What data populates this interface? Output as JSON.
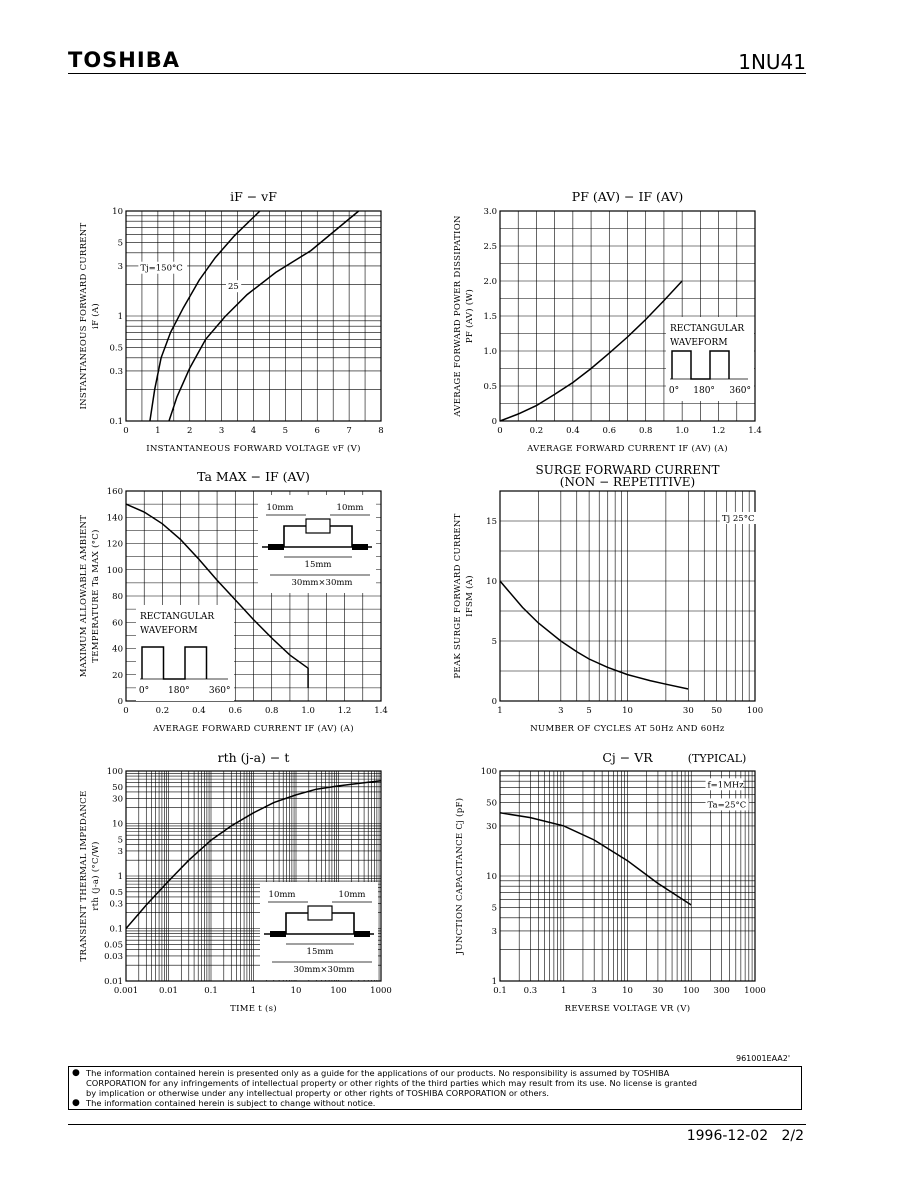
{
  "header": {
    "brand": "TOSHIBA",
    "part_number": "1NU41"
  },
  "chart_data": [
    {
      "id": "c1",
      "type": "line",
      "title": "iF − vF",
      "xlabel": "INSTANTANEOUS FORWARD VOLTAGE   vF   (V)",
      "ylabel": [
        "INSTANTANEOUS FORWARD CURRENT",
        "iF   (A)"
      ],
      "xscale": "linear",
      "yscale": "log",
      "xlim": [
        0,
        8
      ],
      "ylim": [
        0.1,
        10
      ],
      "xticks": [
        0,
        1,
        2,
        3,
        4,
        5,
        6,
        7,
        8
      ],
      "xtick_labels": [
        "0",
        "1",
        "2",
        "3",
        "4",
        "5",
        "6",
        "7",
        "8"
      ],
      "yticks": [
        0.1,
        0.3,
        0.5,
        1,
        3,
        5,
        10
      ],
      "ytick_labels": [
        "0.1",
        "0.3",
        "0.5",
        "1",
        "3",
        "5",
        "10"
      ],
      "grid": true,
      "series": [
        {
          "x": [
            0.75,
            0.9,
            1.1,
            1.4,
            1.8,
            2.3,
            2.8,
            3.4,
            4.2
          ],
          "y": [
            0.1,
            0.2,
            0.4,
            0.7,
            1.2,
            2.2,
            3.6,
            5.8,
            10
          ]
        },
        {
          "x": [
            1.35,
            1.6,
            2.0,
            2.5,
            3.1,
            3.8,
            4.7,
            5.8,
            7.3
          ],
          "y": [
            0.1,
            0.17,
            0.32,
            0.6,
            0.98,
            1.6,
            2.6,
            4.2,
            10
          ]
        }
      ],
      "annotations": [
        {
          "text": "Tj=150°C",
          "x": 0.45,
          "y": 2.7
        },
        {
          "text": "25",
          "x": 3.2,
          "y": 1.8
        }
      ]
    },
    {
      "id": "c2",
      "type": "line",
      "title": "PF (AV) − IF (AV)",
      "xlabel": "AVERAGE FORWARD CURRENT   IF (AV)   (A)",
      "ylabel": [
        "AVERAGE FORWARD POWER DISSIPATION",
        "PF (AV)   (W)"
      ],
      "xscale": "linear",
      "yscale": "linear",
      "xlim": [
        0,
        1.4
      ],
      "ylim": [
        0,
        3.0
      ],
      "xticks": [
        0,
        0.2,
        0.4,
        0.6,
        0.8,
        1.0,
        1.2,
        1.4
      ],
      "xtick_labels": [
        "0",
        "0.2",
        "0.4",
        "0.6",
        "0.8",
        "1.0",
        "1.2",
        "1.4"
      ],
      "yticks": [
        0,
        0.5,
        1.0,
        1.5,
        2.0,
        2.5,
        3.0
      ],
      "ytick_labels": [
        "0",
        "0.5",
        "1.0",
        "1.5",
        "2.0",
        "2.5",
        "3.0"
      ],
      "grid": true,
      "series": [
        {
          "x": [
            0,
            0.1,
            0.2,
            0.3,
            0.4,
            0.5,
            0.6,
            0.7,
            0.8,
            0.9,
            1.0
          ],
          "y": [
            0,
            0.1,
            0.22,
            0.38,
            0.55,
            0.75,
            0.97,
            1.2,
            1.45,
            1.72,
            2.0
          ]
        }
      ],
      "inset": {
        "lines": [
          "RECTANGULAR",
          "WAVEFORM"
        ],
        "labels": [
          "0°",
          "180°",
          "360°"
        ]
      }
    },
    {
      "id": "c3",
      "type": "line",
      "title": "Ta MAX − IF (AV)",
      "xlabel": "AVERAGE FORWARD CURRENT   IF (AV)   (A)",
      "ylabel": [
        "MAXIMUM ALLOWABLE AMBIENT",
        "TEMPERATURE   Ta   MAX   (°C)"
      ],
      "xscale": "linear",
      "yscale": "linear",
      "xlim": [
        0,
        1.4
      ],
      "ylim": [
        0,
        160
      ],
      "xticks": [
        0,
        0.2,
        0.4,
        0.6,
        0.8,
        1.0,
        1.2,
        1.4
      ],
      "xtick_labels": [
        "0",
        "0.2",
        "0.4",
        "0.6",
        "0.8",
        "1.0",
        "1.2",
        "1.4"
      ],
      "yticks": [
        0,
        20,
        40,
        60,
        80,
        100,
        120,
        140,
        160
      ],
      "ytick_labels": [
        "0",
        "20",
        "40",
        "60",
        "80",
        "100",
        "120",
        "140",
        "160"
      ],
      "grid": true,
      "series": [
        {
          "x": [
            0,
            0.1,
            0.2,
            0.3,
            0.4,
            0.5,
            0.6,
            0.7,
            0.8,
            0.9,
            1.0,
            1.0
          ],
          "y": [
            150,
            144,
            135,
            123,
            108,
            92,
            77,
            62,
            48,
            35,
            25,
            10
          ]
        }
      ],
      "inset": {
        "lines": [
          "RECTANGULAR",
          "WAVEFORM"
        ],
        "labels": [
          "0°",
          "180°",
          "360°"
        ]
      },
      "mount": {
        "labels": [
          "10mm",
          "10mm",
          "15mm",
          "30mm×30mm"
        ]
      }
    },
    {
      "id": "c4",
      "type": "line",
      "title": [
        "SURGE FORWARD CURRENT",
        "(NON − REPETITIVE)"
      ],
      "xlabel": "NUMBER OF CYCLES AT 50Hz AND 60Hz",
      "ylabel": [
        "PEAK SURGE FORWARD CURRENT",
        "IFSM   (A)"
      ],
      "xscale": "log",
      "yscale": "linear",
      "xlim": [
        1,
        100
      ],
      "ylim": [
        0,
        17.5
      ],
      "xticks": [
        1,
        3,
        5,
        10,
        30,
        50,
        100
      ],
      "xtick_labels": [
        "1",
        "3",
        "5",
        "10",
        "30",
        "50",
        "100"
      ],
      "yticks": [
        0,
        5,
        10,
        15
      ],
      "ytick_labels": [
        "0",
        "5",
        "10",
        "15"
      ],
      "grid": true,
      "series": [
        {
          "x": [
            1,
            1.5,
            2,
            3,
            4,
            5,
            7,
            10,
            15,
            20,
            30
          ],
          "y": [
            10,
            7.8,
            6.5,
            5.0,
            4.1,
            3.5,
            2.8,
            2.2,
            1.7,
            1.4,
            1.0
          ]
        }
      ],
      "annotations": [
        {
          "text": "Tj  25°C",
          "x": 55,
          "y": 15
        }
      ]
    },
    {
      "id": "c5",
      "type": "line",
      "title": "rth (j-a) − t",
      "xlabel": "TIME   t   (s)",
      "ylabel": [
        "TRANSIENT THERMAL IMPEDANCE",
        "rth (j-a)   (°C/W)"
      ],
      "xscale": "log",
      "yscale": "log",
      "xlim": [
        0.001,
        1000
      ],
      "ylim": [
        0.01,
        100
      ],
      "xticks": [
        0.001,
        0.01,
        0.1,
        1,
        10,
        100,
        1000
      ],
      "xtick_labels": [
        "0.001",
        "0.01",
        "0.1",
        "1",
        "10",
        "100",
        "1000"
      ],
      "yticks": [
        0.01,
        0.03,
        0.05,
        0.1,
        0.3,
        0.5,
        1,
        3,
        5,
        10,
        30,
        50,
        100
      ],
      "ytick_labels": [
        "0.01",
        "0.03",
        "0.05",
        "0.1",
        "0.3",
        "0.5",
        "1",
        "3",
        "5",
        "10",
        "30",
        "50",
        "100"
      ],
      "grid": true,
      "series": [
        {
          "x": [
            0.001,
            0.003,
            0.01,
            0.03,
            0.1,
            0.3,
            1,
            3,
            10,
            30,
            100,
            300,
            1000
          ],
          "y": [
            0.1,
            0.28,
            0.8,
            2.0,
            4.8,
            9,
            16,
            25,
            35,
            45,
            52,
            58,
            65
          ]
        }
      ],
      "mount": {
        "labels": [
          "10mm",
          "10mm",
          "15mm",
          "30mm×30mm"
        ]
      }
    },
    {
      "id": "c6",
      "type": "line",
      "title": "Cj − VR",
      "subtitle": "(TYPICAL)",
      "xlabel": "REVERSE VOLTAGE   VR   (V)",
      "ylabel": [
        "JUNCTION CAPACITANCE   Cj   (pF)"
      ],
      "xscale": "log",
      "yscale": "log",
      "xlim": [
        0.1,
        1000
      ],
      "ylim": [
        1,
        100
      ],
      "xticks": [
        0.1,
        0.3,
        1,
        3,
        10,
        30,
        100,
        300,
        1000
      ],
      "xtick_labels": [
        "0.1",
        "0.3",
        "1",
        "3",
        "10",
        "30",
        "100",
        "300",
        "1000"
      ],
      "yticks": [
        1,
        3,
        5,
        10,
        30,
        50,
        100
      ],
      "ytick_labels": [
        "1",
        "3",
        "5",
        "10",
        "30",
        "50",
        "100"
      ],
      "grid": true,
      "series": [
        {
          "x": [
            0.1,
            0.3,
            1,
            3,
            10,
            30,
            100
          ],
          "y": [
            40,
            36,
            30,
            22,
            14,
            8.5,
            5.3
          ]
        }
      ],
      "annotations": [
        {
          "text": "f=1MHz",
          "x": 180,
          "y": 70
        },
        {
          "text": "Ta=25°C",
          "x": 180,
          "y": 45
        }
      ]
    }
  ],
  "doc_id": "961001EAA2'",
  "notice": [
    "The information contained herein is presented only as a guide for the applications of our products. No responsibility is assumed by TOSHIBA",
    "CORPORATION for any infringements of intellectual property or other rights of the third parties which may result from its use. No license is granted",
    "by implication or otherwise under any intellectual property or other rights of TOSHIBA CORPORATION or others.",
    "The information contained herein is subject to change without notice."
  ],
  "footer": {
    "date": "1996-12-02",
    "page": "2/2"
  }
}
